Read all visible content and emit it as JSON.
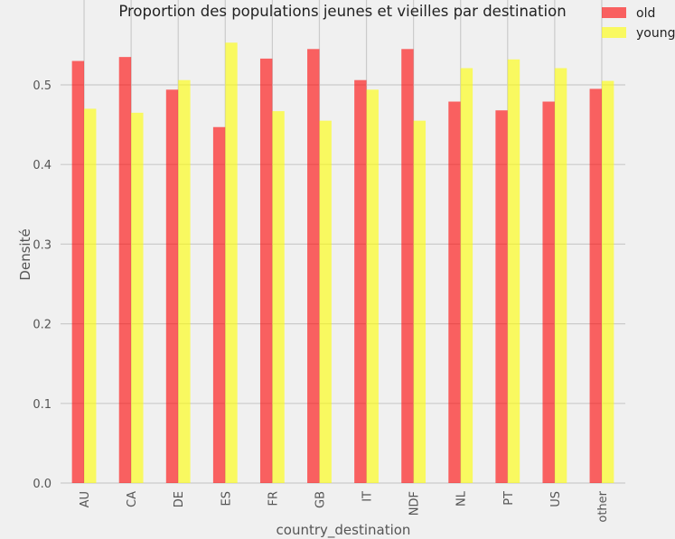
{
  "chart_data": {
    "type": "bar",
    "title": "Proportion des populations jeunes et vieilles par destination",
    "xlabel": "country_destination",
    "ylabel": "Densité",
    "categories": [
      "AU",
      "CA",
      "DE",
      "ES",
      "FR",
      "GB",
      "IT",
      "NDF",
      "NL",
      "PT",
      "US",
      "other"
    ],
    "series": [
      {
        "name": "old",
        "color": "#ff0000",
        "values": [
          0.53,
          0.535,
          0.494,
          0.447,
          0.533,
          0.545,
          0.506,
          0.545,
          0.479,
          0.468,
          0.479,
          0.495
        ]
      },
      {
        "name": "young",
        "color": "#ffff00",
        "values": [
          0.47,
          0.465,
          0.506,
          0.553,
          0.467,
          0.455,
          0.494,
          0.455,
          0.521,
          0.532,
          0.521,
          0.505
        ]
      }
    ],
    "ylim": [
      0,
      0.58
    ],
    "yticks": [
      0.0,
      0.1,
      0.2,
      0.3,
      0.4,
      0.5
    ],
    "ytick_labels": [
      "0.0",
      "0.1",
      "0.2",
      "0.3",
      "0.4",
      "0.5"
    ],
    "grid": true,
    "legend_position": "top-right"
  }
}
